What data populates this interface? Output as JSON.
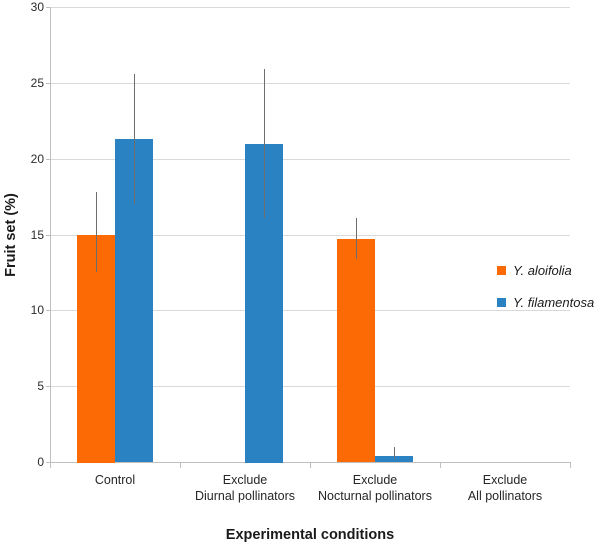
{
  "chart_data": {
    "type": "bar",
    "title": "",
    "xlabel": "Experimental conditions",
    "ylabel": "Fruit set (%)",
    "ylim": [
      0,
      30
    ],
    "yticks": [
      0,
      5,
      10,
      15,
      20,
      25,
      30
    ],
    "grid": true,
    "legend_position": "middle-right",
    "categories": [
      "Control",
      "Exclude Diurnal pollinators",
      "Exclude Nocturnal pollinators",
      "Exclude All pollinators"
    ],
    "category_label_lines": [
      [
        "Control"
      ],
      [
        "Exclude",
        "Diurnal pollinators"
      ],
      [
        "Exclude",
        "Nocturnal pollinators"
      ],
      [
        "Exclude",
        "All pollinators"
      ]
    ],
    "series": [
      {
        "name": "Y. aloifolia",
        "color": "#fb6a04",
        "values": [
          15.0,
          0,
          14.7,
          0
        ],
        "error_low": [
          12.5,
          null,
          13.4,
          null
        ],
        "error_high": [
          17.8,
          null,
          16.1,
          null
        ]
      },
      {
        "name": "Y. filamentosa",
        "color": "#2b82c3",
        "values": [
          21.3,
          21.0,
          0.4,
          0
        ],
        "error_low": [
          17.0,
          16.1,
          0.2,
          null
        ],
        "error_high": [
          25.6,
          25.9,
          1.0,
          null
        ]
      }
    ],
    "colors": {
      "gridline": "#d9d9d9",
      "axis": "#bfbfbf",
      "error_bar": "#6e6e6e",
      "text": "#2b2b2b"
    }
  }
}
